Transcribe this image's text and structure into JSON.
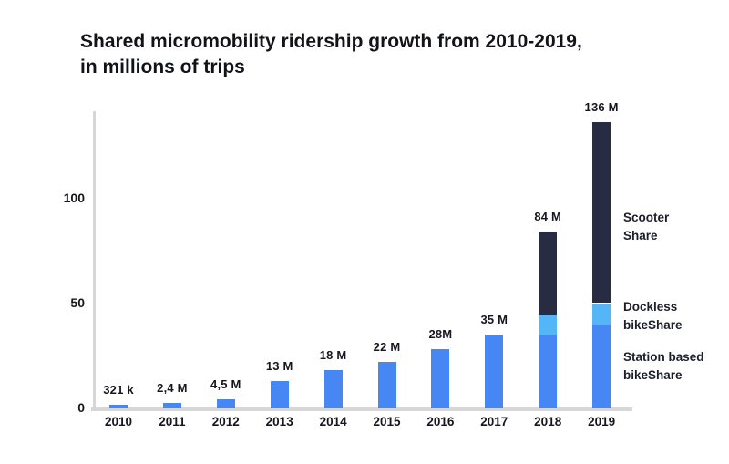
{
  "title": {
    "line1": "Shared micromobility ridership growth from 2010-2019,",
    "line2": "in millions of trips"
  },
  "colors": {
    "station_based_blue": "#4787f3",
    "dockless_light_blue": "#55b6f7",
    "scooter_navy": "#272c43",
    "axis_gray": "#d6d6d6",
    "text_dark": "#15161f",
    "background": "#ffffff"
  },
  "chart_data": {
    "type": "bar",
    "stacked": true,
    "title": "Shared micromobility ridership growth from 2010-2019, in millions of trips",
    "xlabel": "",
    "ylabel": "",
    "categories": [
      "2010",
      "2011",
      "2012",
      "2013",
      "2014",
      "2015",
      "2016",
      "2017",
      "2018",
      "2019"
    ],
    "series": [
      {
        "name": "Station based bikeShare",
        "key": "station-based-bikeshare",
        "color": "#4787f3",
        "values": [
          0.321,
          2.4,
          4.5,
          13,
          18,
          22,
          28,
          35,
          35,
          40
        ]
      },
      {
        "name": "Dockless bikeShare",
        "key": "dockless-bikeshare",
        "color": "#55b6f7",
        "values": [
          0,
          0,
          0,
          0,
          0,
          0,
          0,
          0,
          9,
          10
        ]
      },
      {
        "name": "Scooter Share",
        "key": "scooter-share",
        "color": "#272c43",
        "values": [
          0,
          0,
          0,
          0,
          0,
          0,
          0,
          0,
          40,
          86
        ]
      }
    ],
    "totals": [
      0.321,
      2.4,
      4.5,
      13,
      18,
      22,
      28,
      35,
      84,
      136
    ],
    "bar_total_labels": [
      "321 k",
      "2,4 M",
      "4,5 M",
      "13 M",
      "18 M",
      "22 M",
      "28M",
      "35 M",
      "84 M",
      "136 M"
    ],
    "y_ticks": [
      0,
      50,
      100
    ],
    "ylim": [
      0,
      140
    ],
    "grid": false,
    "legend_position": "right"
  },
  "legend": {
    "items": [
      {
        "series": "Scooter Share",
        "line1": "Scooter",
        "line2": "Share"
      },
      {
        "series": "Dockless bikeShare",
        "line1": "Dockless",
        "line2": "bikeShare"
      },
      {
        "series": "Station based bikeShare",
        "line1": "Station based",
        "line2": "bikeShare"
      }
    ]
  }
}
